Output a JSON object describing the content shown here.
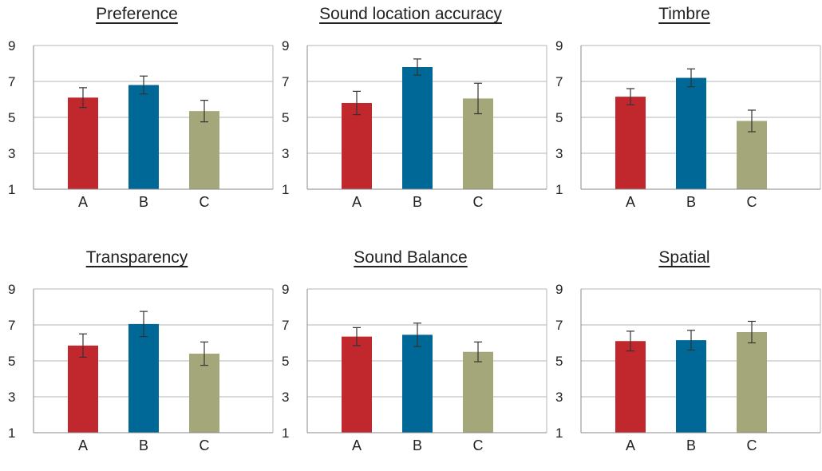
{
  "chart_data": [
    {
      "type": "bar",
      "title": "Preference",
      "categories": [
        "A",
        "B",
        "C"
      ],
      "values": [
        6.1,
        6.8,
        5.35
      ],
      "errors": [
        0.55,
        0.5,
        0.6
      ],
      "ylim": [
        1,
        9
      ],
      "yticks": [
        "1",
        "3",
        "5",
        "7",
        "9"
      ],
      "colors": [
        "#c0282d",
        "#006897",
        "#a4a77a"
      ],
      "grid": true
    },
    {
      "type": "bar",
      "title": "Sound location accuracy",
      "categories": [
        "A",
        "B",
        "C"
      ],
      "values": [
        5.8,
        7.8,
        6.05
      ],
      "errors": [
        0.65,
        0.45,
        0.85
      ],
      "ylim": [
        1,
        9
      ],
      "yticks": [
        "1",
        "3",
        "5",
        "7",
        "9"
      ],
      "colors": [
        "#c0282d",
        "#006897",
        "#a4a77a"
      ],
      "grid": true
    },
    {
      "type": "bar",
      "title": "Timbre",
      "categories": [
        "A",
        "B",
        "C"
      ],
      "values": [
        6.15,
        7.2,
        4.8
      ],
      "errors": [
        0.45,
        0.5,
        0.6
      ],
      "ylim": [
        1,
        9
      ],
      "yticks": [
        "1",
        "3",
        "5",
        "7",
        "9"
      ],
      "colors": [
        "#c0282d",
        "#006897",
        "#a4a77a"
      ],
      "grid": true
    },
    {
      "type": "bar",
      "title": "Transparency",
      "categories": [
        "A",
        "B",
        "C"
      ],
      "values": [
        5.85,
        7.05,
        5.4
      ],
      "errors": [
        0.65,
        0.7,
        0.65
      ],
      "ylim": [
        1,
        9
      ],
      "yticks": [
        "1",
        "3",
        "5",
        "7",
        "9"
      ],
      "colors": [
        "#c0282d",
        "#006897",
        "#a4a77a"
      ],
      "grid": true
    },
    {
      "type": "bar",
      "title": "Sound Balance",
      "categories": [
        "A",
        "B",
        "C"
      ],
      "values": [
        6.35,
        6.45,
        5.5
      ],
      "errors": [
        0.5,
        0.65,
        0.55
      ],
      "ylim": [
        1,
        9
      ],
      "yticks": [
        "1",
        "3",
        "5",
        "7",
        "9"
      ],
      "colors": [
        "#c0282d",
        "#006897",
        "#a4a77a"
      ],
      "grid": true
    },
    {
      "type": "bar",
      "title": "Spatial",
      "categories": [
        "A",
        "B",
        "C"
      ],
      "values": [
        6.1,
        6.15,
        6.6
      ],
      "errors": [
        0.55,
        0.55,
        0.6
      ],
      "ylim": [
        1,
        9
      ],
      "yticks": [
        "1",
        "3",
        "5",
        "7",
        "9"
      ],
      "colors": [
        "#c0282d",
        "#006897",
        "#a4a77a"
      ],
      "grid": true
    }
  ]
}
